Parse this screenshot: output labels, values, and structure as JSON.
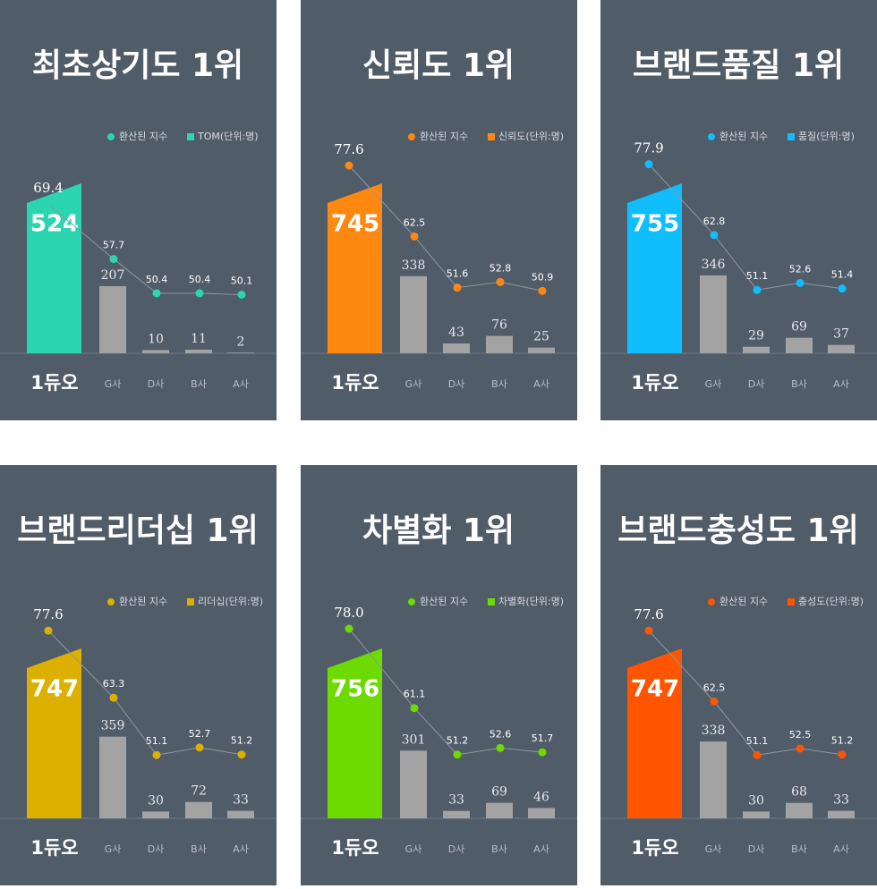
{
  "chart_data": [
    {
      "type": "bar",
      "title": "최초상기도 1위",
      "categories": [
        "1듀오",
        "G사",
        "D사",
        "B사",
        "A사"
      ],
      "series": [
        {
          "name": "TOM(단위:명)",
          "type": "bar",
          "color": "#2ad5b0",
          "colors": [
            "#2ad5b0",
            "#a3a3a3",
            "#a3a3a3",
            "#a3a3a3",
            "#a3a3a3"
          ],
          "values": [
            524,
            207,
            10,
            11,
            2
          ]
        },
        {
          "name": "환산된 지수",
          "type": "line",
          "color": "#2ad5b0",
          "values": [
            69.4,
            57.7,
            50.4,
            50.4,
            50.1
          ]
        }
      ]
    },
    {
      "type": "bar",
      "title": "신뢰도 1위",
      "categories": [
        "1듀오",
        "G사",
        "D사",
        "B사",
        "A사"
      ],
      "series": [
        {
          "name": "신뢰도(단위:명)",
          "type": "bar",
          "color": "#ff8811",
          "colors": [
            "#ff8811",
            "#a3a3a3",
            "#a3a3a3",
            "#a3a3a3",
            "#a3a3a3"
          ],
          "values": [
            745,
            338,
            43,
            76,
            25
          ]
        },
        {
          "name": "환산된 지수",
          "type": "line",
          "color": "#ff8811",
          "values": [
            77.6,
            62.5,
            51.6,
            52.8,
            50.9
          ]
        }
      ]
    },
    {
      "type": "bar",
      "title": "브랜드품질 1위",
      "categories": [
        "1듀오",
        "G사",
        "D사",
        "B사",
        "A사"
      ],
      "series": [
        {
          "name": "품질(단위:명)",
          "type": "bar",
          "color": "#10bdff",
          "colors": [
            "#10bdff",
            "#a3a3a3",
            "#a3a3a3",
            "#a3a3a3",
            "#a3a3a3"
          ],
          "values": [
            755,
            346,
            29,
            69,
            37
          ]
        },
        {
          "name": "환산된 지수",
          "type": "line",
          "color": "#10bdff",
          "values": [
            77.9,
            62.8,
            51.1,
            52.6,
            51.4
          ]
        }
      ]
    },
    {
      "type": "bar",
      "title": "브랜드리더십 1위",
      "categories": [
        "1듀오",
        "G사",
        "D사",
        "B사",
        "A사"
      ],
      "series": [
        {
          "name": "리더십(단위:명)",
          "type": "bar",
          "color": "#ddb000",
          "colors": [
            "#ddb000",
            "#a3a3a3",
            "#a3a3a3",
            "#a3a3a3",
            "#a3a3a3"
          ],
          "values": [
            747,
            359,
            30,
            72,
            33
          ]
        },
        {
          "name": "환산된 지수",
          "type": "line",
          "color": "#ddb000",
          "values": [
            77.6,
            63.3,
            51.1,
            52.7,
            51.2
          ]
        }
      ]
    },
    {
      "type": "bar",
      "title": "차별화 1위",
      "categories": [
        "1듀오",
        "G사",
        "D사",
        "B사",
        "A사"
      ],
      "series": [
        {
          "name": "차별화(단위:명)",
          "type": "bar",
          "color": "#6ddb00",
          "colors": [
            "#6ddb00",
            "#a3a3a3",
            "#a3a3a3",
            "#a3a3a3",
            "#a3a3a3"
          ],
          "values": [
            756,
            301,
            33,
            69,
            46
          ]
        },
        {
          "name": "환산된 지수",
          "type": "line",
          "color": "#6ddb00",
          "values": [
            78.0,
            61.1,
            51.2,
            52.6,
            51.7
          ],
          "value_labels": [
            "78.0",
            "61.1",
            "51.2",
            "52.6",
            "51.7"
          ]
        }
      ]
    },
    {
      "type": "bar",
      "title": "브랜드충성도 1위",
      "categories": [
        "1듀오",
        "G사",
        "D사",
        "B사",
        "A사"
      ],
      "series": [
        {
          "name": "충성도(단위:명)",
          "type": "bar",
          "color": "#ff5500",
          "colors": [
            "#ff5500",
            "#a3a3a3",
            "#a3a3a3",
            "#a3a3a3",
            "#a3a3a3"
          ],
          "values": [
            747,
            338,
            30,
            68,
            33
          ]
        },
        {
          "name": "환산된 지수",
          "type": "line",
          "color": "#ff5500",
          "values": [
            77.6,
            62.5,
            51.1,
            52.5,
            51.2
          ]
        }
      ]
    }
  ]
}
